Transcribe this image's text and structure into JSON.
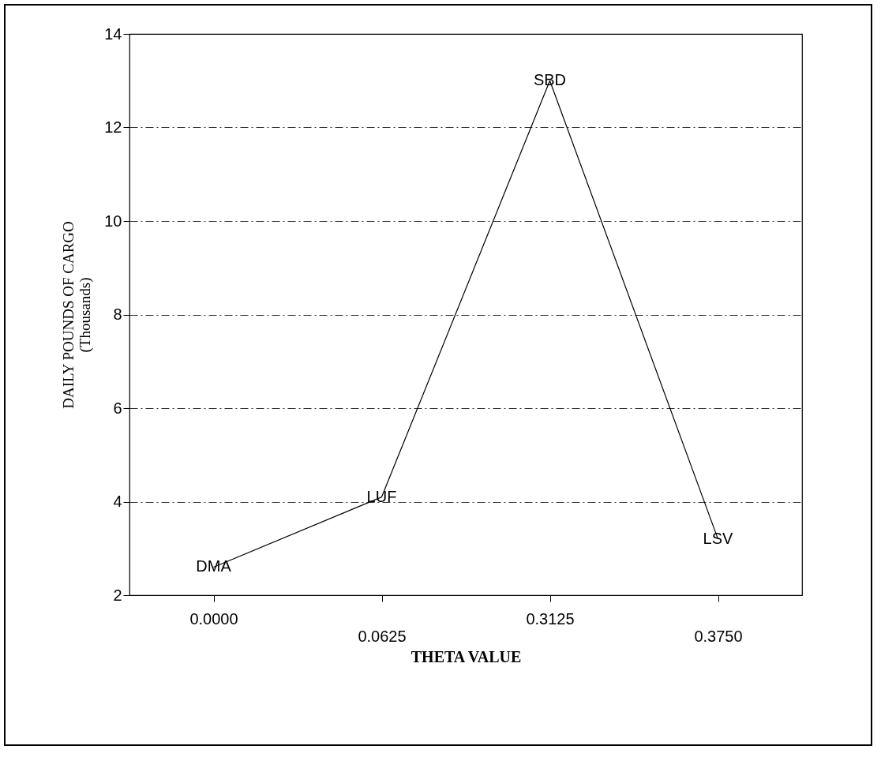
{
  "chart_data": {
    "type": "line",
    "xlabel": "THETA VALUE",
    "ylabel": "DAILY POUNDS OF CARGO\n(Thousands)",
    "categories": [
      "0.0000",
      "0.0625",
      "0.3125",
      "0.3750"
    ],
    "series": [
      {
        "color": "#000000",
        "values": [
          2.6,
          4.1,
          13.0,
          3.2
        ]
      }
    ],
    "ylim": [
      2,
      14
    ],
    "yticks": [
      2,
      4,
      6,
      8,
      10,
      12,
      14
    ],
    "grid": "y",
    "marker": "none",
    "line_style": "solid",
    "annotations": [
      {
        "text": "DMA",
        "x": "0.0000",
        "y": 2.6
      },
      {
        "text": "LUF",
        "x": "0.0625",
        "y": 4.1
      },
      {
        "text": "SBD",
        "x": "0.3125",
        "y": 13.0
      },
      {
        "text": "LSV",
        "x": "0.3750",
        "y": 3.2
      }
    ]
  }
}
